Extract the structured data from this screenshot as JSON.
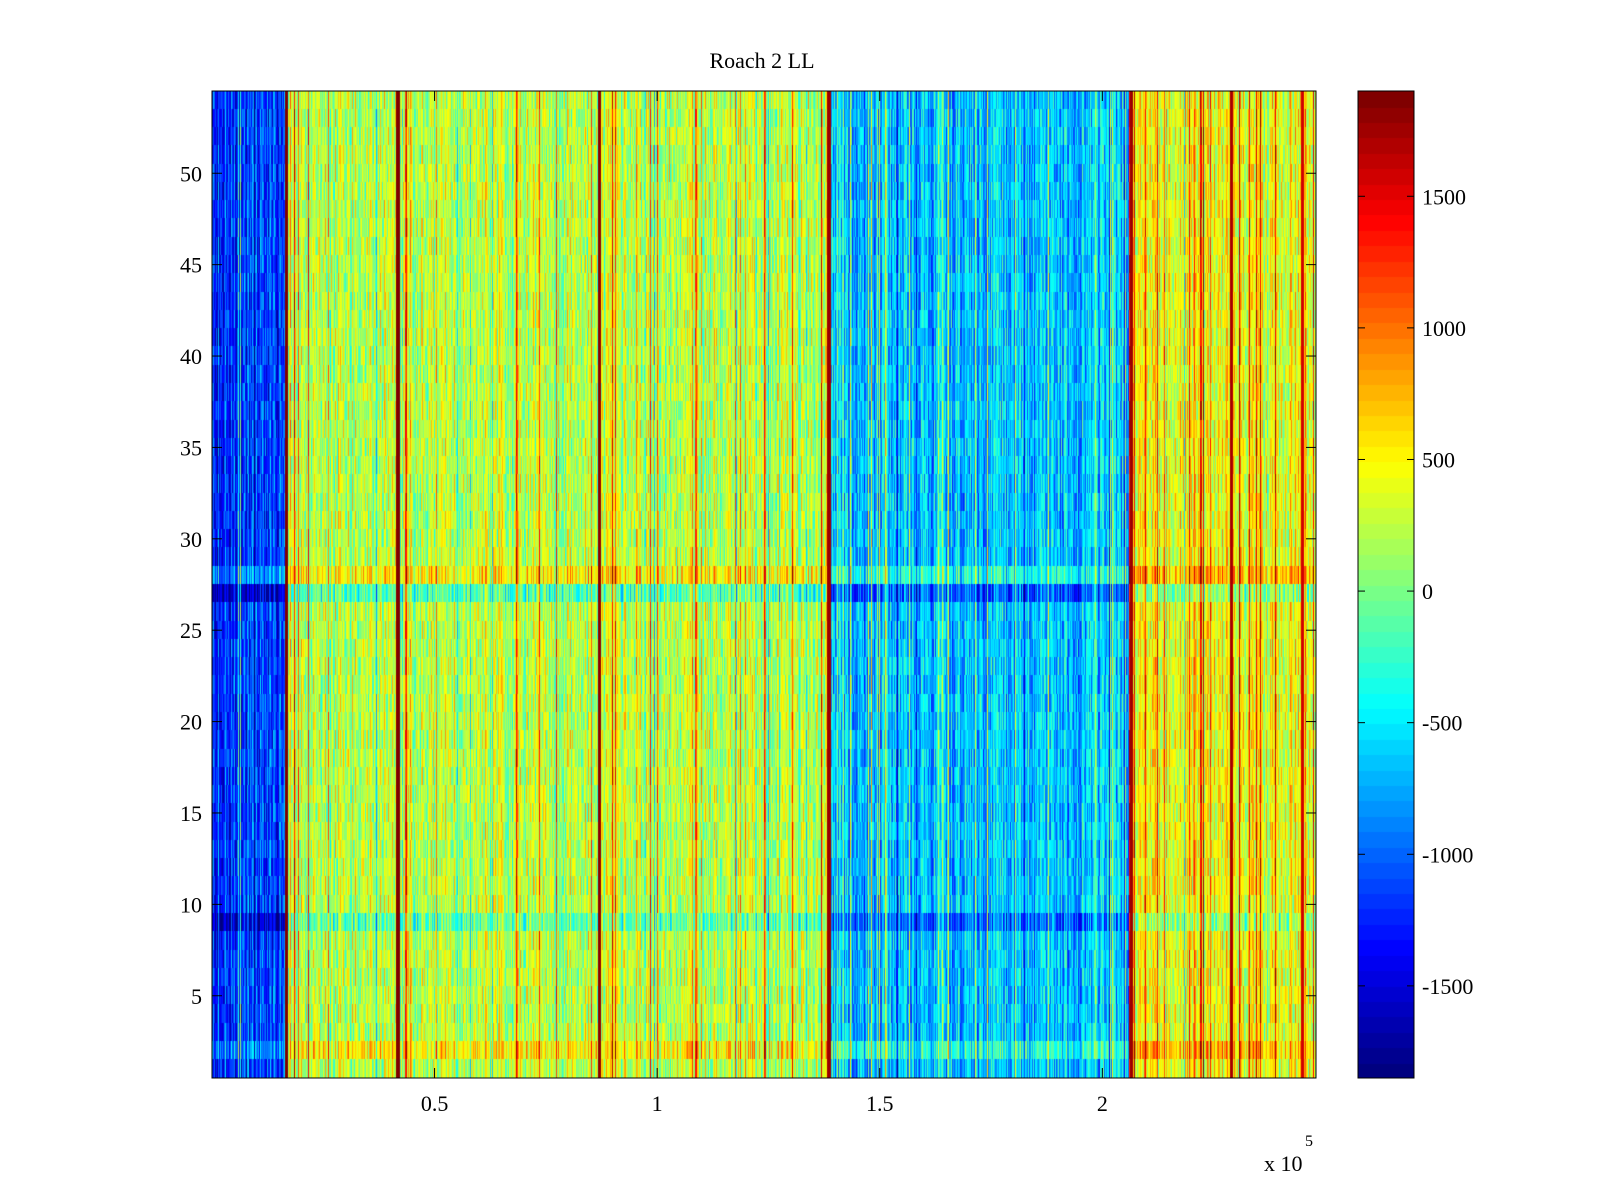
{
  "chart_data": {
    "type": "heatmap",
    "title": "Roach 2 LL",
    "xlabel": "",
    "ylabel": "",
    "x_range": [
      0,
      248000
    ],
    "y_range": [
      0.5,
      54.5
    ],
    "x_ticks": [
      0.5,
      1,
      1.5,
      2
    ],
    "x_tick_labels": [
      "0.5",
      "1",
      "1.5",
      "2"
    ],
    "x_exponent_label": "x 10",
    "x_exponent_power": "5",
    "y_ticks": [
      5,
      10,
      15,
      20,
      25,
      30,
      35,
      40,
      45,
      50
    ],
    "y_tick_labels": [
      "5",
      "10",
      "15",
      "20",
      "25",
      "30",
      "35",
      "40",
      "45",
      "50"
    ],
    "colorbar": {
      "range": [
        -1850,
        1900
      ],
      "ticks": [
        -1500,
        -1000,
        -500,
        0,
        500,
        1000,
        1500
      ],
      "tick_labels": [
        "-1500",
        "-1000",
        "-500",
        "0",
        "500",
        "1000",
        "1500"
      ],
      "colormap": "jet"
    },
    "n_rows": 54,
    "regions": [
      {
        "x_start": 0,
        "x_end": 16500,
        "mean_value": -1150,
        "description": "low (blue)"
      },
      {
        "x_start": 16500,
        "x_end": 138500,
        "mean_value": 250,
        "description": "high (yellow-green)"
      },
      {
        "x_start": 138500,
        "x_end": 206000,
        "mean_value": -650,
        "description": "low (cyan-blue)"
      },
      {
        "x_start": 206000,
        "x_end": 248000,
        "mean_value": 450,
        "description": "high (yellow-orange)"
      }
    ],
    "vertical_stripes": [
      {
        "x": 16800,
        "value": 1900
      },
      {
        "x": 41800,
        "value": 1900
      },
      {
        "x": 87000,
        "value": 1850
      },
      {
        "x": 138600,
        "value": 1800
      },
      {
        "x": 206500,
        "value": 1800
      },
      {
        "x": 229000,
        "value": 1750
      },
      {
        "x": 245000,
        "value": 1600
      }
    ],
    "row_offsets": [
      {
        "row": 2,
        "offset": 300,
        "note": "bottom rows show stronger contrast"
      },
      {
        "row": 9,
        "offset": -350
      },
      {
        "row": 27,
        "offset": -400
      },
      {
        "row": 28,
        "offset": 300
      }
    ]
  }
}
